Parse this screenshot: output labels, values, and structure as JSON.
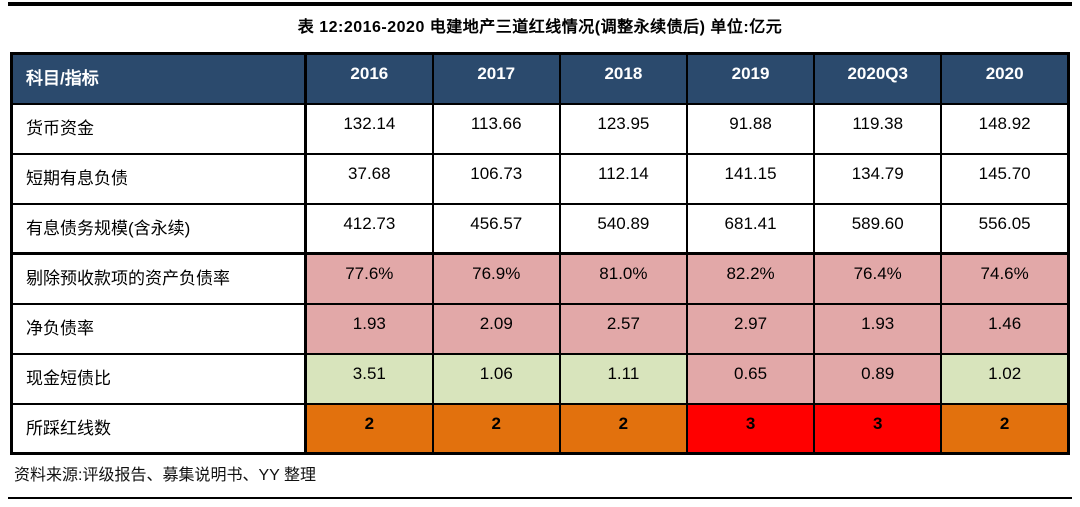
{
  "title": "表 12:2016-2020 电建地产三道红线情况(调整永续债后)  单位:亿元",
  "source": "资料来源:评级报告、募集说明书、YY 整理",
  "colors": {
    "header_bg": "#2B4A6D",
    "header_text": "#FFFFFF",
    "pink": "#E2A8A8",
    "green": "#D8E4BC",
    "orange": "#E2710D",
    "red": "#FF0000",
    "border": "#000000"
  },
  "table": {
    "header": [
      "科目/指标",
      "2016",
      "2017",
      "2018",
      "2019",
      "2020Q3",
      "2020"
    ],
    "rows": [
      {
        "label": "货币资金",
        "values": [
          "132.14",
          "113.66",
          "123.95",
          "91.88",
          "119.38",
          "148.92"
        ],
        "colors": [
          "none",
          "none",
          "none",
          "none",
          "none",
          "none"
        ]
      },
      {
        "label": "短期有息负债",
        "values": [
          "37.68",
          "106.73",
          "112.14",
          "141.15",
          "134.79",
          "145.70"
        ],
        "colors": [
          "none",
          "none",
          "none",
          "none",
          "none",
          "none"
        ]
      },
      {
        "label": "有息债务规模(含永续)",
        "values": [
          "412.73",
          "456.57",
          "540.89",
          "681.41",
          "589.60",
          "556.05"
        ],
        "colors": [
          "none",
          "none",
          "none",
          "none",
          "none",
          "none"
        ]
      },
      {
        "label": "剔除预收款项的资产负债率",
        "values": [
          "77.6%",
          "76.9%",
          "81.0%",
          "82.2%",
          "76.4%",
          "74.6%"
        ],
        "colors": [
          "pink",
          "pink",
          "pink",
          "pink",
          "pink",
          "pink"
        ]
      },
      {
        "label": "净负债率",
        "values": [
          "1.93",
          "2.09",
          "2.57",
          "2.97",
          "1.93",
          "1.46"
        ],
        "colors": [
          "pink",
          "pink",
          "pink",
          "pink",
          "pink",
          "pink"
        ]
      },
      {
        "label": "现金短债比",
        "values": [
          "3.51",
          "1.06",
          "1.11",
          "0.65",
          "0.89",
          "1.02"
        ],
        "colors": [
          "green",
          "green",
          "green",
          "pink",
          "pink",
          "green"
        ]
      },
      {
        "label": "所踩红线数",
        "values": [
          "2",
          "2",
          "2",
          "3",
          "3",
          "2"
        ],
        "colors": [
          "orange",
          "orange",
          "orange",
          "red",
          "red",
          "orange"
        ]
      }
    ]
  }
}
